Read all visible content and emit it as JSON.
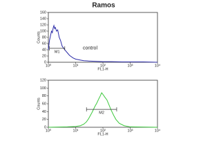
{
  "title": "Ramos",
  "chart_data": [
    {
      "type": "line",
      "log_x": true,
      "xlabel": "FL1-H",
      "ylabel": "Counts",
      "annotation": "control",
      "gate": {
        "label": "M1",
        "range": [
          1.1,
          4
        ]
      },
      "series": [
        {
          "color": "#2c2ca8",
          "x": [
            1,
            1.1,
            1.2,
            1.3,
            1.4,
            1.5,
            1.6,
            1.7,
            1.8,
            2,
            2.2,
            2.5,
            2.8,
            3.2,
            4,
            5,
            6,
            8,
            10,
            15,
            20,
            30,
            50,
            100,
            200,
            500,
            1000,
            3000,
            10000
          ],
          "values": [
            40,
            70,
            85,
            100,
            95,
            110,
            118,
            108,
            112,
            100,
            104,
            80,
            70,
            52,
            40,
            30,
            22,
            14,
            10,
            7,
            5,
            4,
            3,
            2,
            2,
            1,
            1,
            1,
            0
          ]
        }
      ],
      "xlim": [
        1,
        10000
      ],
      "xticks": [
        {
          "value": 1,
          "label": "10⁰"
        },
        {
          "value": 10,
          "label": "10¹"
        },
        {
          "value": 100,
          "label": "10²"
        },
        {
          "value": 1000,
          "label": "10³"
        },
        {
          "value": 10000,
          "label": "10⁴"
        }
      ],
      "ylim": [
        0,
        160
      ],
      "yticks": [
        0,
        20,
        40,
        60,
        80,
        100,
        120,
        140,
        160
      ]
    },
    {
      "type": "line",
      "log_x": true,
      "xlabel": "FL1-H",
      "ylabel": "Counts",
      "gate": {
        "label": "M2",
        "range": [
          25,
          320
        ]
      },
      "series": [
        {
          "color": "#3cc83c",
          "x": [
            1,
            5,
            10,
            15,
            20,
            25,
            30,
            40,
            50,
            60,
            70,
            80,
            90,
            100,
            120,
            140,
            170,
            200,
            250,
            300,
            400,
            600,
            1000,
            10000
          ],
          "values": [
            0,
            1,
            2,
            4,
            8,
            14,
            22,
            38,
            52,
            62,
            72,
            80,
            88,
            84,
            76,
            70,
            56,
            44,
            30,
            20,
            10,
            4,
            1,
            0
          ]
        }
      ],
      "xlim": [
        1,
        10000
      ],
      "xticks": [
        {
          "value": 1,
          "label": "10⁰"
        },
        {
          "value": 10,
          "label": "10¹"
        },
        {
          "value": 100,
          "label": "10²"
        },
        {
          "value": 1000,
          "label": "10³"
        },
        {
          "value": 10000,
          "label": "10⁴"
        }
      ],
      "ylim": [
        0,
        120
      ],
      "yticks": [
        0,
        20,
        40,
        60,
        80,
        100,
        120
      ]
    }
  ]
}
